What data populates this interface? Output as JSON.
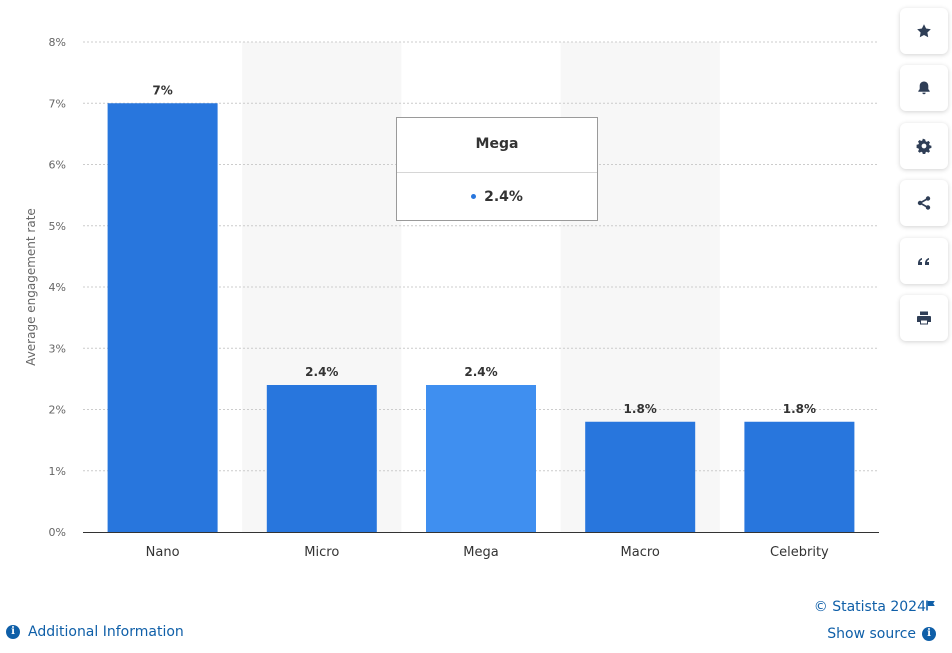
{
  "chart_data": {
    "type": "bar",
    "categories": [
      "Nano",
      "Micro",
      "Mega",
      "Macro",
      "Celebrity"
    ],
    "values": [
      7,
      2.4,
      2.4,
      1.8,
      1.8
    ],
    "data_labels": [
      "7%",
      "2.4%",
      "2.4%",
      "1.8%",
      "1.8%"
    ],
    "ylabel": "Average engagement rate",
    "xlabel": "",
    "ylim": [
      0,
      8
    ],
    "yticks": [
      "0%",
      "1%",
      "2%",
      "3%",
      "4%",
      "5%",
      "6%",
      "7%",
      "8%"
    ],
    "highlighted_index": 2,
    "grid": true,
    "colors": {
      "bar": "#2876dd",
      "bar_highlight": "#3f8ff0",
      "band": "#f7f7f7",
      "grid": "#cccccc"
    }
  },
  "tooltip": {
    "title": "Mega",
    "value": "2.4%"
  },
  "toolbar": [
    {
      "icon": "star-icon",
      "name": "favorite-button"
    },
    {
      "icon": "bell-icon",
      "name": "notification-button"
    },
    {
      "icon": "gear-icon",
      "name": "settings-button"
    },
    {
      "icon": "share-icon",
      "name": "share-button"
    },
    {
      "icon": "quote-icon",
      "name": "cite-button"
    },
    {
      "icon": "print-icon",
      "name": "print-button"
    }
  ],
  "footer": {
    "credits": "© Statista 2024",
    "show_source": "Show source",
    "additional_info": "Additional Information",
    "info_glyph": "i"
  }
}
